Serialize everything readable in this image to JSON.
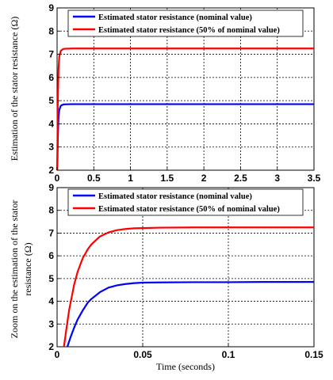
{
  "chart_data": [
    {
      "type": "line",
      "title": "",
      "xlabel": "",
      "ylabel": "Estimation of the stator resistance (Ω)",
      "xlim": [
        0,
        3.5
      ],
      "ylim": [
        2,
        9
      ],
      "xticks": [
        0,
        0.5,
        1,
        1.5,
        2,
        2.5,
        3,
        3.5
      ],
      "xtick_labels": [
        "0",
        "0.5",
        "1",
        "1.5",
        "2",
        "2.5",
        "3",
        "3.5"
      ],
      "yticks": [
        2,
        3,
        4,
        5,
        6,
        7,
        8,
        9
      ],
      "ytick_labels": [
        "2",
        "3",
        "4",
        "5",
        "6",
        "7",
        "8",
        "9"
      ],
      "grid": true,
      "legend_position": "top-right",
      "series": [
        {
          "name": "Estimated stator resistance (nominal value)",
          "color": "#0000ff",
          "x": [
            0.0,
            0.005,
            0.01,
            0.02,
            0.03,
            0.05,
            0.08,
            0.1,
            0.2,
            0.5,
            1.0,
            1.5,
            2.0,
            2.5,
            3.0,
            3.5
          ],
          "y": [
            2.0,
            2.4,
            3.4,
            4.3,
            4.6,
            4.78,
            4.83,
            4.84,
            4.85,
            4.85,
            4.85,
            4.85,
            4.85,
            4.85,
            4.85,
            4.85
          ]
        },
        {
          "name": "Estimated stator resistance (50% of nominal value)",
          "color": "#ff0000",
          "x": [
            0.0,
            0.005,
            0.01,
            0.02,
            0.03,
            0.05,
            0.08,
            0.1,
            0.2,
            0.5,
            1.0,
            1.5,
            2.0,
            2.5,
            3.0,
            3.5
          ],
          "y": [
            2.0,
            3.2,
            5.0,
            6.4,
            6.9,
            7.15,
            7.22,
            7.24,
            7.25,
            7.25,
            7.25,
            7.25,
            7.25,
            7.25,
            7.25,
            7.25
          ]
        }
      ]
    },
    {
      "type": "line",
      "title": "",
      "xlabel": "Time (seconds)",
      "ylabel": "Zoom on the estimation of the stator resistance (Ω)",
      "ylabel_lines": [
        "Zoom on the estimation of the stator",
        "resistance (Ω)"
      ],
      "xlim": [
        0,
        0.15
      ],
      "ylim": [
        2,
        9
      ],
      "xticks": [
        0,
        0.05,
        0.1,
        0.15
      ],
      "xtick_labels": [
        "0",
        "0.05",
        "0.1",
        "0.15"
      ],
      "yticks": [
        2,
        3,
        4,
        5,
        6,
        7,
        8,
        9
      ],
      "ytick_labels": [
        "2",
        "3",
        "4",
        "5",
        "6",
        "7",
        "8",
        "9"
      ],
      "grid": true,
      "legend_position": "top-right",
      "series": [
        {
          "name": "Estimated stator resistance (nominal value)",
          "color": "#0000ff",
          "x": [
            0.006,
            0.008,
            0.01,
            0.012,
            0.015,
            0.018,
            0.02,
            0.025,
            0.03,
            0.035,
            0.04,
            0.045,
            0.05,
            0.06,
            0.08,
            0.1,
            0.12,
            0.15
          ],
          "y": [
            2.0,
            2.45,
            2.85,
            3.2,
            3.6,
            3.95,
            4.1,
            4.4,
            4.6,
            4.7,
            4.76,
            4.8,
            4.82,
            4.83,
            4.84,
            4.84,
            4.85,
            4.85
          ]
        },
        {
          "name": "Estimated stator resistance (50% of nominal value)",
          "color": "#ff0000",
          "x": [
            0.004,
            0.005,
            0.007,
            0.01,
            0.012,
            0.015,
            0.018,
            0.02,
            0.025,
            0.03,
            0.035,
            0.04,
            0.045,
            0.05,
            0.06,
            0.08,
            0.1,
            0.12,
            0.15
          ],
          "y": [
            2.0,
            2.55,
            3.6,
            4.75,
            5.3,
            5.9,
            6.3,
            6.5,
            6.85,
            7.03,
            7.13,
            7.18,
            7.21,
            7.22,
            7.24,
            7.25,
            7.25,
            7.25,
            7.25
          ]
        }
      ]
    }
  ]
}
